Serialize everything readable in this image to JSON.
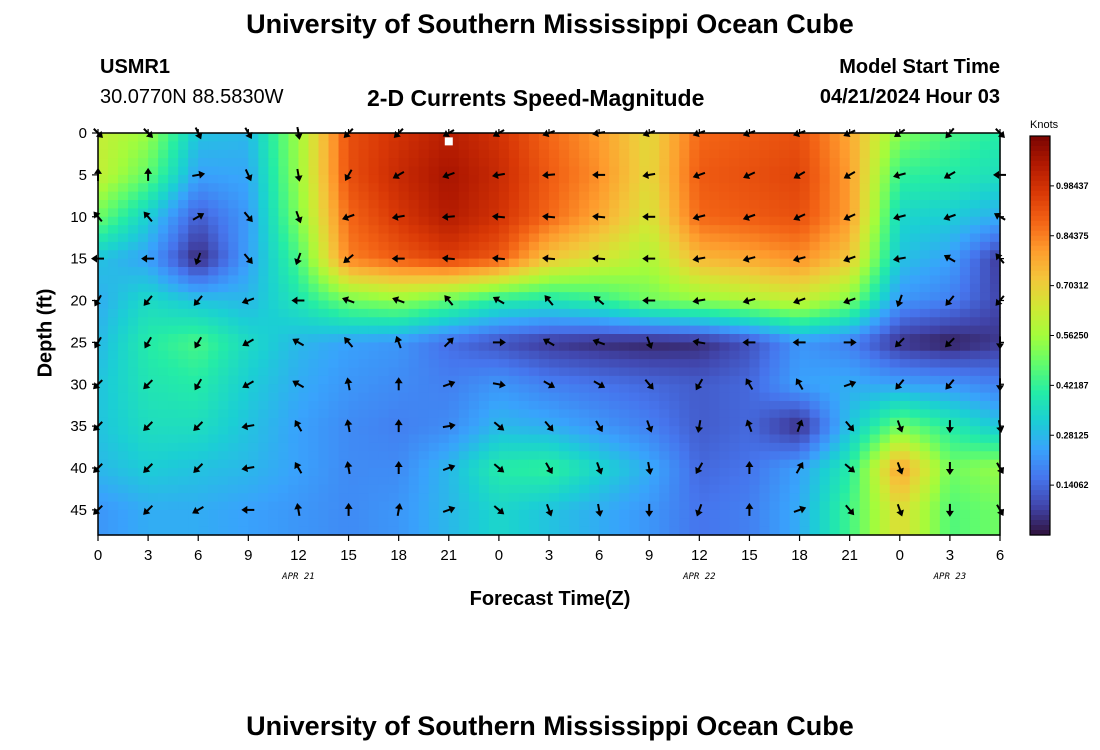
{
  "header": {
    "title": "University of Southern Mississippi Ocean Cube",
    "station_id": "USMR1",
    "coords": "30.0770N  88.5830W",
    "start_label": "Model Start Time",
    "start_value": "04/21/2024 Hour 03",
    "footer_title": "University of Southern Mississippi Ocean Cube"
  },
  "colors": {
    "ramp": [
      "#30123b",
      "#4145ab",
      "#4675ed",
      "#39a2fc",
      "#1bcfd4",
      "#24eca6",
      "#61fc6c",
      "#a4fc3b",
      "#d1e834",
      "#f3c63a",
      "#fe9b2d",
      "#f36315",
      "#d93806",
      "#b11901",
      "#7a0402"
    ]
  },
  "chart_data": {
    "type": "heatmap",
    "title": "2-D Currents Speed-Magnitude",
    "xlabel": "Forecast Time(Z)",
    "ylabel": "Depth (ft)",
    "x_tick_labels": [
      "0",
      "3",
      "6",
      "9",
      "12",
      "15",
      "18",
      "21",
      "0",
      "3",
      "6",
      "9",
      "12",
      "15",
      "18",
      "21",
      "0",
      "3",
      "6"
    ],
    "date_labels": [
      {
        "text": "APR 21",
        "tick": 4
      },
      {
        "text": "APR 22",
        "tick": 12
      },
      {
        "text": "APR 23",
        "tick": 17
      }
    ],
    "y_ticks": [
      0,
      5,
      10,
      15,
      20,
      25,
      30,
      35,
      40,
      45
    ],
    "ylim": [
      0,
      48
    ],
    "y_inverted": true,
    "colorbar": {
      "unit": "Knots",
      "range": [
        0,
        1.125
      ],
      "labels": [
        "0.98437",
        "0.84375",
        "0.70312",
        "0.56250",
        "0.42187",
        "0.28125",
        "0.14062"
      ]
    },
    "depths_ft": [
      0,
      5,
      10,
      15,
      20,
      25,
      30,
      35,
      40,
      45
    ],
    "speed_knots": [
      [
        0.62,
        0.55,
        0.3,
        0.28,
        0.56,
        0.92,
        0.98,
        1.03,
        0.98,
        0.88,
        0.8,
        0.68,
        0.88,
        0.9,
        0.92,
        0.78,
        0.52,
        0.45,
        0.4
      ],
      [
        0.62,
        0.48,
        0.24,
        0.25,
        0.55,
        0.92,
        1.0,
        1.06,
        1.0,
        0.9,
        0.82,
        0.68,
        0.9,
        0.92,
        0.94,
        0.8,
        0.42,
        0.4,
        0.36
      ],
      [
        0.5,
        0.32,
        0.12,
        0.23,
        0.52,
        0.88,
        0.97,
        1.04,
        0.98,
        0.88,
        0.78,
        0.65,
        0.88,
        0.9,
        0.92,
        0.8,
        0.34,
        0.32,
        0.26
      ],
      [
        0.3,
        0.24,
        0.03,
        0.24,
        0.45,
        0.84,
        0.9,
        0.95,
        0.9,
        0.72,
        0.65,
        0.58,
        0.75,
        0.78,
        0.82,
        0.72,
        0.3,
        0.24,
        0.06
      ],
      [
        0.26,
        0.35,
        0.3,
        0.28,
        0.38,
        0.5,
        0.54,
        0.48,
        0.4,
        0.38,
        0.42,
        0.5,
        0.54,
        0.58,
        0.62,
        0.52,
        0.22,
        0.18,
        0.08
      ],
      [
        0.28,
        0.4,
        0.45,
        0.35,
        0.28,
        0.24,
        0.22,
        0.15,
        0.1,
        0.06,
        0.04,
        0.03,
        0.04,
        0.1,
        0.22,
        0.18,
        0.05,
        0.02,
        0.06
      ],
      [
        0.3,
        0.38,
        0.4,
        0.32,
        0.26,
        0.22,
        0.2,
        0.18,
        0.22,
        0.18,
        0.16,
        0.14,
        0.12,
        0.14,
        0.24,
        0.26,
        0.24,
        0.22,
        0.18
      ],
      [
        0.3,
        0.36,
        0.36,
        0.3,
        0.24,
        0.2,
        0.18,
        0.2,
        0.28,
        0.26,
        0.22,
        0.18,
        0.12,
        0.14,
        0.04,
        0.3,
        0.5,
        0.4,
        0.3
      ],
      [
        0.28,
        0.32,
        0.3,
        0.28,
        0.24,
        0.2,
        0.2,
        0.28,
        0.4,
        0.42,
        0.34,
        0.26,
        0.14,
        0.16,
        0.24,
        0.4,
        0.8,
        0.5,
        0.55
      ],
      [
        0.22,
        0.26,
        0.26,
        0.24,
        0.22,
        0.2,
        0.22,
        0.28,
        0.34,
        0.3,
        0.26,
        0.22,
        0.16,
        0.18,
        0.26,
        0.44,
        0.68,
        0.46,
        0.5
      ]
    ],
    "direction_deg": [
      [
        135,
        135,
        155,
        150,
        170,
        225,
        225,
        240,
        240,
        250,
        260,
        250,
        250,
        250,
        250,
        245,
        235,
        220,
        135
      ],
      [
        0,
        0,
        80,
        155,
        170,
        210,
        240,
        250,
        260,
        265,
        270,
        260,
        250,
        245,
        240,
        240,
        255,
        240,
        270
      ],
      [
        320,
        320,
        60,
        140,
        160,
        250,
        260,
        265,
        275,
        275,
        275,
        270,
        255,
        250,
        245,
        245,
        255,
        250,
        300
      ],
      [
        270,
        270,
        200,
        140,
        200,
        230,
        270,
        275,
        275,
        275,
        275,
        270,
        260,
        255,
        255,
        250,
        260,
        300,
        320
      ],
      [
        210,
        220,
        220,
        250,
        270,
        290,
        290,
        320,
        300,
        320,
        310,
        270,
        260,
        255,
        250,
        250,
        200,
        220,
        220
      ],
      [
        210,
        210,
        210,
        240,
        300,
        320,
        340,
        45,
        90,
        300,
        290,
        160,
        280,
        270,
        270,
        90,
        225,
        225,
        180
      ],
      [
        225,
        225,
        210,
        240,
        300,
        350,
        0,
        70,
        100,
        120,
        120,
        140,
        210,
        330,
        330,
        70,
        220,
        220,
        180
      ],
      [
        225,
        225,
        225,
        260,
        330,
        350,
        0,
        80,
        130,
        140,
        150,
        160,
        190,
        340,
        20,
        140,
        160,
        180,
        170
      ],
      [
        225,
        225,
        225,
        260,
        330,
        350,
        0,
        70,
        130,
        150,
        160,
        170,
        210,
        0,
        30,
        130,
        160,
        180,
        150
      ],
      [
        225,
        225,
        240,
        270,
        350,
        0,
        10,
        70,
        130,
        160,
        170,
        180,
        200,
        0,
        70,
        140,
        160,
        180,
        150
      ]
    ],
    "marker": {
      "time_index": 7,
      "depth_ft": 1
    }
  }
}
